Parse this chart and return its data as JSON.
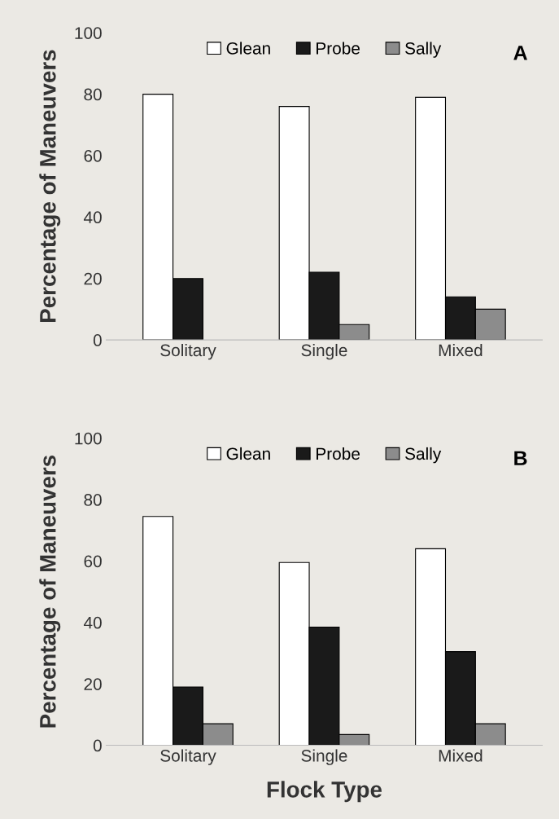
{
  "chart_data": [
    {
      "type": "bar",
      "categories": [
        "Solitary",
        "Single",
        "Mixed"
      ],
      "ylabel": "Percentage of Maneuvers",
      "ylim": [
        0,
        100
      ],
      "yticks": [
        0,
        20,
        40,
        60,
        80,
        100
      ],
      "legend": "top",
      "annotations": [
        "A"
      ],
      "series": [
        {
          "name": "Glean",
          "color": "#ffffff",
          "values": [
            80,
            76,
            79
          ]
        },
        {
          "name": "Probe",
          "color": "#1a1a1a",
          "values": [
            20,
            22,
            14
          ]
        },
        {
          "name": "Sally",
          "color": "#8c8c8c",
          "values": [
            0,
            5,
            10
          ]
        }
      ]
    },
    {
      "type": "bar",
      "categories": [
        "Solitary",
        "Single",
        "Mixed"
      ],
      "xlabel": "Flock Type",
      "ylabel": "Percentage of Maneuvers",
      "ylim": [
        0,
        100
      ],
      "yticks": [
        0,
        20,
        40,
        60,
        80,
        100
      ],
      "legend": "top",
      "annotations": [
        "B"
      ],
      "series": [
        {
          "name": "Glean",
          "color": "#ffffff",
          "values": [
            74.5,
            59.5,
            64
          ]
        },
        {
          "name": "Probe",
          "color": "#1a1a1a",
          "values": [
            19,
            38.5,
            30.5
          ]
        },
        {
          "name": "Sally",
          "color": "#8c8c8c",
          "values": [
            7,
            3.5,
            7
          ]
        }
      ]
    }
  ]
}
